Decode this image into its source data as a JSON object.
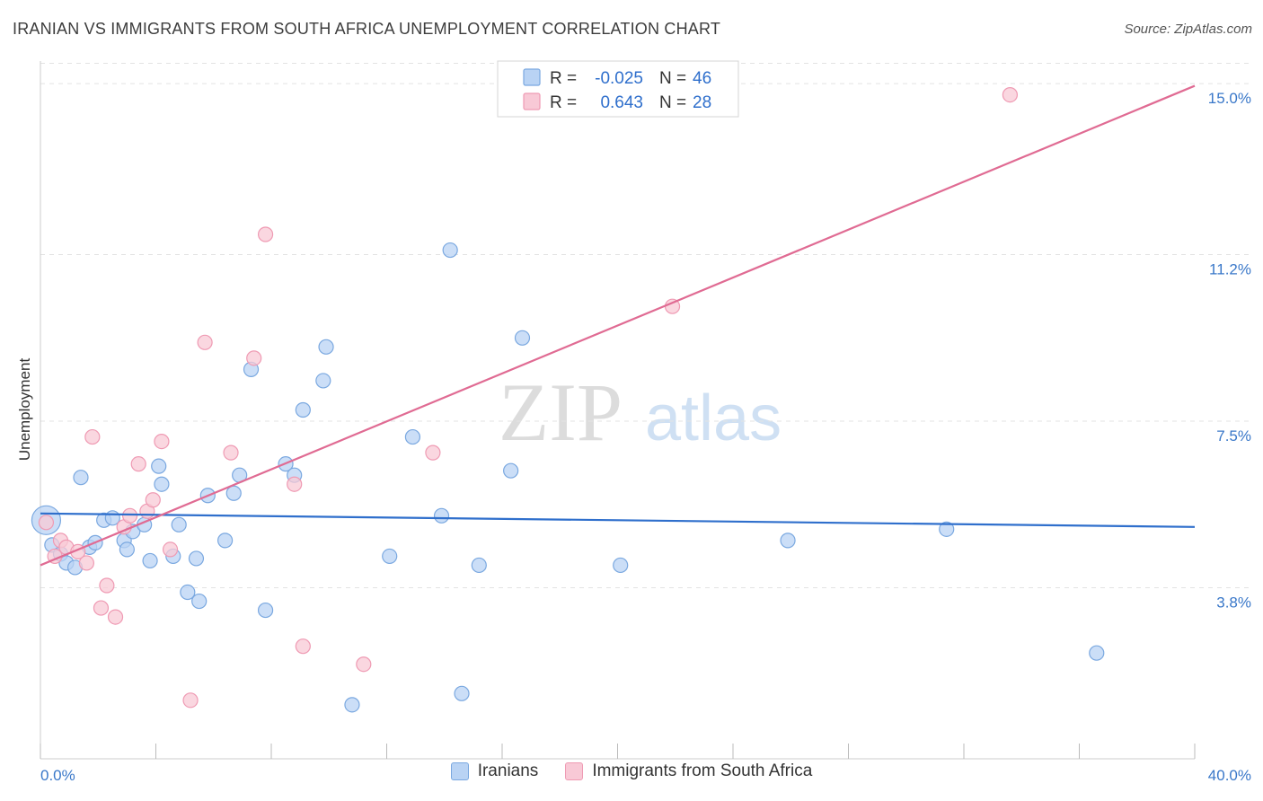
{
  "header": {
    "title": "IRANIAN VS IMMIGRANTS FROM SOUTH AFRICA UNEMPLOYMENT CORRELATION CHART",
    "source": "Source: ZipAtlas.com"
  },
  "watermark": {
    "zip": "ZIP",
    "atlas": "atlas"
  },
  "legend_box": {
    "rows": [
      {
        "r_label": "R =",
        "r_value": "-0.025",
        "n_label": "N =",
        "n_value": "46"
      },
      {
        "r_label": "R =",
        "r_value": "0.643",
        "n_label": "N =",
        "n_value": "28"
      }
    ]
  },
  "colors": {
    "blue_fill": "#b9d3f4",
    "blue_stroke": "#7aa8e0",
    "blue_line": "#2f6fcc",
    "pink_fill": "#f8c9d6",
    "pink_stroke": "#ef9ab3",
    "pink_line": "#e06b93",
    "tick_text": "#3a78c9",
    "grid": "#e3e3e3"
  },
  "chart_data": {
    "type": "scatter",
    "title": "IRANIAN VS IMMIGRANTS FROM SOUTH AFRICA UNEMPLOYMENT CORRELATION CHART",
    "xlabel": "",
    "ylabel": "Unemployment",
    "xlim": [
      0,
      40
    ],
    "ylim": [
      0,
      15.5
    ],
    "x_tick_labels": [
      "0.0%",
      "40.0%"
    ],
    "y_ticks": [
      3.8,
      7.5,
      11.2,
      15.0
    ],
    "y_tick_labels": [
      "3.8%",
      "7.5%",
      "11.2%",
      "15.0%"
    ],
    "grid": true,
    "legend": [
      "Iranians",
      "Immigrants from South Africa"
    ],
    "series": [
      {
        "name": "Iranians",
        "r": -0.025,
        "n": 46,
        "trend": {
          "x": [
            0,
            40
          ],
          "y": [
            5.45,
            5.15
          ]
        },
        "points": [
          [
            0.2,
            5.3
          ],
          [
            0.4,
            4.75
          ],
          [
            0.7,
            4.55
          ],
          [
            0.9,
            4.35
          ],
          [
            1.2,
            4.25
          ],
          [
            1.4,
            6.25
          ],
          [
            1.7,
            4.7
          ],
          [
            1.9,
            4.8
          ],
          [
            2.2,
            5.3
          ],
          [
            2.5,
            5.35
          ],
          [
            2.9,
            4.85
          ],
          [
            3.0,
            4.65
          ],
          [
            3.2,
            5.05
          ],
          [
            3.6,
            5.2
          ],
          [
            3.8,
            4.4
          ],
          [
            4.1,
            6.5
          ],
          [
            4.2,
            6.1
          ],
          [
            4.8,
            5.2
          ],
          [
            4.6,
            4.5
          ],
          [
            5.1,
            3.7
          ],
          [
            5.4,
            4.45
          ],
          [
            5.5,
            3.5
          ],
          [
            5.8,
            5.85
          ],
          [
            6.4,
            4.85
          ],
          [
            6.7,
            5.9
          ],
          [
            6.9,
            6.3
          ],
          [
            7.3,
            8.65
          ],
          [
            7.8,
            3.3
          ],
          [
            8.5,
            6.55
          ],
          [
            8.8,
            6.3
          ],
          [
            9.1,
            7.75
          ],
          [
            9.8,
            8.4
          ],
          [
            9.9,
            9.15
          ],
          [
            10.8,
            1.2
          ],
          [
            12.1,
            4.5
          ],
          [
            12.9,
            7.15
          ],
          [
            13.9,
            5.4
          ],
          [
            14.2,
            11.3
          ],
          [
            14.6,
            1.45
          ],
          [
            15.2,
            4.3
          ],
          [
            16.3,
            6.4
          ],
          [
            16.7,
            9.35
          ],
          [
            20.1,
            4.3
          ],
          [
            25.9,
            4.85
          ],
          [
            31.4,
            5.1
          ],
          [
            36.6,
            2.35
          ]
        ]
      },
      {
        "name": "Immigrants from South Africa",
        "r": 0.643,
        "n": 28,
        "trend": {
          "x": [
            0,
            40
          ],
          "y": [
            4.3,
            14.95
          ]
        },
        "points": [
          [
            0.2,
            5.25
          ],
          [
            0.5,
            4.5
          ],
          [
            0.7,
            4.85
          ],
          [
            0.9,
            4.7
          ],
          [
            1.3,
            4.6
          ],
          [
            1.6,
            4.35
          ],
          [
            1.8,
            7.15
          ],
          [
            2.3,
            3.85
          ],
          [
            2.1,
            3.35
          ],
          [
            2.6,
            3.15
          ],
          [
            2.9,
            5.15
          ],
          [
            3.1,
            5.4
          ],
          [
            3.4,
            6.55
          ],
          [
            3.7,
            5.5
          ],
          [
            3.9,
            5.75
          ],
          [
            4.2,
            7.05
          ],
          [
            4.5,
            4.65
          ],
          [
            5.2,
            1.3
          ],
          [
            5.7,
            9.25
          ],
          [
            6.6,
            6.8
          ],
          [
            7.4,
            8.9
          ],
          [
            7.8,
            11.65
          ],
          [
            8.8,
            6.1
          ],
          [
            9.1,
            2.5
          ],
          [
            11.2,
            2.1
          ],
          [
            13.6,
            6.8
          ],
          [
            21.9,
            10.05
          ],
          [
            33.6,
            14.75
          ]
        ]
      }
    ]
  }
}
